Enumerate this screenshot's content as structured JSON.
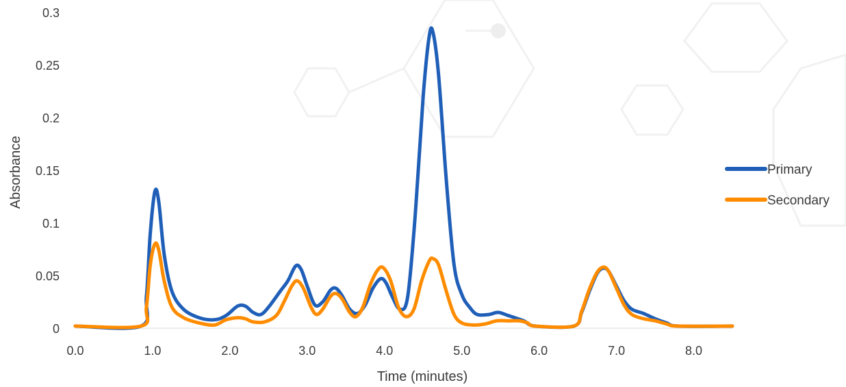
{
  "chart_data": {
    "type": "line",
    "title": "",
    "xlabel": "Time (minutes)",
    "ylabel": "Absorbance",
    "xlim": [
      0,
      8.5
    ],
    "ylim": [
      0,
      0.3
    ],
    "x_ticks": [
      "0.0",
      "1.0",
      "2.0",
      "3.0",
      "4.0",
      "5.0",
      "6.0",
      "7.0",
      "8.0"
    ],
    "y_ticks": [
      "0",
      "0.05",
      "0.1",
      "0.15",
      "0.2",
      "0.25",
      "0.3"
    ],
    "grid": false,
    "legend_position": "right",
    "series": [
      {
        "name": "Primary",
        "color": "#1f5fb8",
        "points": [
          [
            0,
            0.002
          ],
          [
            0.85,
            0.002
          ],
          [
            0.92,
            0.03
          ],
          [
            0.97,
            0.09
          ],
          [
            1.03,
            0.13
          ],
          [
            1.08,
            0.12
          ],
          [
            1.15,
            0.07
          ],
          [
            1.25,
            0.035
          ],
          [
            1.4,
            0.018
          ],
          [
            1.6,
            0.01
          ],
          [
            1.8,
            0.008
          ],
          [
            1.95,
            0.012
          ],
          [
            2.1,
            0.021
          ],
          [
            2.2,
            0.021
          ],
          [
            2.3,
            0.015
          ],
          [
            2.4,
            0.013
          ],
          [
            2.5,
            0.02
          ],
          [
            2.65,
            0.035
          ],
          [
            2.75,
            0.045
          ],
          [
            2.85,
            0.059
          ],
          [
            2.92,
            0.056
          ],
          [
            3.0,
            0.04
          ],
          [
            3.1,
            0.022
          ],
          [
            3.2,
            0.025
          ],
          [
            3.3,
            0.036
          ],
          [
            3.37,
            0.038
          ],
          [
            3.45,
            0.031
          ],
          [
            3.55,
            0.018
          ],
          [
            3.65,
            0.014
          ],
          [
            3.75,
            0.022
          ],
          [
            3.85,
            0.038
          ],
          [
            3.95,
            0.047
          ],
          [
            4.02,
            0.043
          ],
          [
            4.1,
            0.03
          ],
          [
            4.2,
            0.018
          ],
          [
            4.3,
            0.03
          ],
          [
            4.4,
            0.11
          ],
          [
            4.5,
            0.22
          ],
          [
            4.58,
            0.278
          ],
          [
            4.63,
            0.28
          ],
          [
            4.7,
            0.24
          ],
          [
            4.8,
            0.14
          ],
          [
            4.9,
            0.06
          ],
          [
            5.0,
            0.032
          ],
          [
            5.1,
            0.02
          ],
          [
            5.2,
            0.013
          ],
          [
            5.35,
            0.013
          ],
          [
            5.47,
            0.015
          ],
          [
            5.6,
            0.012
          ],
          [
            5.8,
            0.007
          ],
          [
            5.95,
            0.002
          ],
          [
            6.45,
            0.002
          ],
          [
            6.55,
            0.015
          ],
          [
            6.65,
            0.035
          ],
          [
            6.75,
            0.052
          ],
          [
            6.83,
            0.057
          ],
          [
            6.9,
            0.054
          ],
          [
            7.0,
            0.04
          ],
          [
            7.1,
            0.026
          ],
          [
            7.2,
            0.018
          ],
          [
            7.35,
            0.014
          ],
          [
            7.5,
            0.009
          ],
          [
            7.65,
            0.005
          ],
          [
            7.8,
            0.002
          ],
          [
            8.5,
            0.002
          ]
        ]
      },
      {
        "name": "Secondary",
        "color": "#ff8c00",
        "points": [
          [
            0,
            0.002
          ],
          [
            0.85,
            0.002
          ],
          [
            0.92,
            0.02
          ],
          [
            0.97,
            0.06
          ],
          [
            1.03,
            0.08
          ],
          [
            1.08,
            0.074
          ],
          [
            1.15,
            0.045
          ],
          [
            1.25,
            0.02
          ],
          [
            1.4,
            0.01
          ],
          [
            1.6,
            0.005
          ],
          [
            1.8,
            0.003
          ],
          [
            1.95,
            0.008
          ],
          [
            2.1,
            0.01
          ],
          [
            2.2,
            0.009
          ],
          [
            2.3,
            0.006
          ],
          [
            2.45,
            0.006
          ],
          [
            2.6,
            0.012
          ],
          [
            2.7,
            0.025
          ],
          [
            2.8,
            0.04
          ],
          [
            2.87,
            0.045
          ],
          [
            2.95,
            0.038
          ],
          [
            3.05,
            0.02
          ],
          [
            3.12,
            0.013
          ],
          [
            3.2,
            0.018
          ],
          [
            3.3,
            0.03
          ],
          [
            3.37,
            0.033
          ],
          [
            3.45,
            0.028
          ],
          [
            3.55,
            0.015
          ],
          [
            3.63,
            0.011
          ],
          [
            3.72,
            0.02
          ],
          [
            3.82,
            0.042
          ],
          [
            3.92,
            0.056
          ],
          [
            3.99,
            0.057
          ],
          [
            4.08,
            0.045
          ],
          [
            4.18,
            0.02
          ],
          [
            4.28,
            0.011
          ],
          [
            4.38,
            0.018
          ],
          [
            4.48,
            0.045
          ],
          [
            4.58,
            0.064
          ],
          [
            4.63,
            0.066
          ],
          [
            4.7,
            0.06
          ],
          [
            4.8,
            0.035
          ],
          [
            4.9,
            0.013
          ],
          [
            5.0,
            0.005
          ],
          [
            5.15,
            0.003
          ],
          [
            5.3,
            0.004
          ],
          [
            5.45,
            0.007
          ],
          [
            5.6,
            0.007
          ],
          [
            5.75,
            0.007
          ],
          [
            5.85,
            0.005
          ],
          [
            5.95,
            0.002
          ],
          [
            6.45,
            0.002
          ],
          [
            6.55,
            0.016
          ],
          [
            6.65,
            0.037
          ],
          [
            6.75,
            0.053
          ],
          [
            6.83,
            0.058
          ],
          [
            6.9,
            0.054
          ],
          [
            7.0,
            0.038
          ],
          [
            7.1,
            0.022
          ],
          [
            7.2,
            0.013
          ],
          [
            7.35,
            0.009
          ],
          [
            7.5,
            0.007
          ],
          [
            7.65,
            0.004
          ],
          [
            7.8,
            0.002
          ],
          [
            8.5,
            0.002
          ]
        ]
      }
    ]
  }
}
